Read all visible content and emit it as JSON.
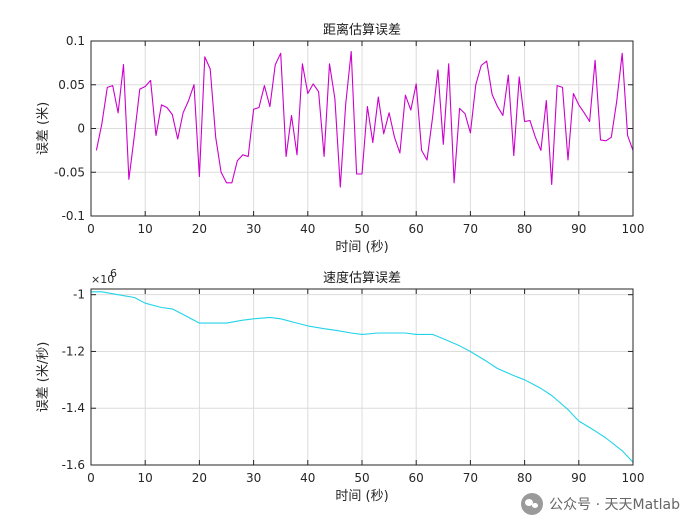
{
  "chart_data": [
    {
      "type": "line",
      "title": "距离估算误差",
      "xlabel": "时间 (秒)",
      "ylabel": "误差 (米)",
      "xlim": [
        0,
        100
      ],
      "ylim": [
        -0.1,
        0.1
      ],
      "xticks": [
        0,
        10,
        20,
        30,
        40,
        50,
        60,
        70,
        80,
        90,
        100
      ],
      "yticks": [
        -0.1,
        -0.05,
        0,
        0.05,
        0.1
      ],
      "ytick_labels": [
        "-0.1",
        "-0.05",
        "0",
        "0.05",
        "0.1"
      ],
      "grid": true,
      "color": "#cc00cc",
      "x": [
        1,
        2,
        3,
        4,
        5,
        6,
        7,
        8,
        9,
        10,
        11,
        12,
        13,
        14,
        15,
        16,
        17,
        18,
        19,
        20,
        21,
        22,
        23,
        24,
        25,
        26,
        27,
        28,
        29,
        30,
        31,
        32,
        33,
        34,
        35,
        36,
        37,
        38,
        39,
        40,
        41,
        42,
        43,
        44,
        45,
        46,
        47,
        48,
        49,
        50,
        51,
        52,
        53,
        54,
        55,
        56,
        57,
        58,
        59,
        60,
        61,
        62,
        63,
        64,
        65,
        66,
        67,
        68,
        69,
        70,
        71,
        72,
        73,
        74,
        75,
        76,
        77,
        78,
        79,
        80,
        81,
        82,
        83,
        84,
        85,
        86,
        87,
        88,
        89,
        90,
        91,
        92,
        93,
        94,
        95,
        96,
        97,
        98,
        99,
        100
      ],
      "y": [
        -0.025,
        0.005,
        0.047,
        0.049,
        0.018,
        0.073,
        -0.058,
        -0.008,
        0.045,
        0.048,
        0.055,
        -0.008,
        0.027,
        0.024,
        0.016,
        -0.012,
        0.018,
        0.032,
        0.05,
        -0.055,
        0.082,
        0.068,
        -0.01,
        -0.05,
        -0.062,
        -0.062,
        -0.037,
        -0.03,
        -0.032,
        0.022,
        0.024,
        0.049,
        0.025,
        0.073,
        0.086,
        -0.032,
        0.015,
        -0.03,
        0.074,
        0.04,
        0.051,
        0.042,
        -0.032,
        0.074,
        0.034,
        -0.067,
        0.028,
        0.088,
        -0.052,
        -0.052,
        0.025,
        -0.016,
        0.036,
        -0.006,
        0.018,
        -0.01,
        -0.028,
        0.038,
        0.021,
        0.051,
        -0.025,
        -0.036,
        0.012,
        0.067,
        -0.018,
        0.074,
        -0.062,
        0.023,
        0.017,
        -0.005,
        0.05,
        0.072,
        0.077,
        0.039,
        0.025,
        0.015,
        0.061,
        -0.031,
        0.059,
        0.008,
        0.009,
        -0.01,
        -0.025,
        0.032,
        -0.064,
        0.049,
        0.047,
        -0.036,
        0.04,
        0.027,
        0.018,
        0.008,
        0.078,
        -0.013,
        -0.014,
        -0.01,
        0.031,
        0.086,
        -0.008,
        -0.025
      ]
    },
    {
      "type": "line",
      "title": "速度估算误差",
      "xlabel": "时间 (秒)",
      "ylabel": "误差 (米/秒)",
      "exponent_label": "×10",
      "exponent_power": "6",
      "xlim": [
        0,
        100
      ],
      "ylim": [
        -1.6,
        -0.98
      ],
      "xticks": [
        0,
        10,
        20,
        30,
        40,
        50,
        60,
        70,
        80,
        90,
        100
      ],
      "yticks": [
        -1.6,
        -1.4,
        -1.2,
        -1.0
      ],
      "ytick_labels": [
        "-1.6",
        "-1.4",
        "-1.2",
        "-1"
      ],
      "grid": true,
      "color": "#22d3e8",
      "x": [
        0,
        2,
        5,
        8,
        10,
        13,
        15,
        18,
        20,
        23,
        25,
        28,
        30,
        33,
        35,
        38,
        40,
        43,
        45,
        48,
        50,
        53,
        55,
        58,
        60,
        63,
        65,
        68,
        70,
        73,
        75,
        78,
        80,
        83,
        85,
        88,
        90,
        93,
        95,
        98,
        100
      ],
      "y": [
        -0.99,
        -0.99,
        -1.0,
        -1.01,
        -1.03,
        -1.045,
        -1.05,
        -1.08,
        -1.1,
        -1.1,
        -1.1,
        -1.09,
        -1.085,
        -1.08,
        -1.085,
        -1.1,
        -1.11,
        -1.12,
        -1.125,
        -1.135,
        -1.14,
        -1.135,
        -1.135,
        -1.135,
        -1.14,
        -1.14,
        -1.155,
        -1.18,
        -1.2,
        -1.235,
        -1.26,
        -1.285,
        -1.3,
        -1.33,
        -1.355,
        -1.405,
        -1.445,
        -1.48,
        -1.505,
        -1.55,
        -1.59
      ]
    }
  ],
  "watermark": {
    "icon": "wechat-icon",
    "text": "公众号 · 天天Matlab"
  }
}
